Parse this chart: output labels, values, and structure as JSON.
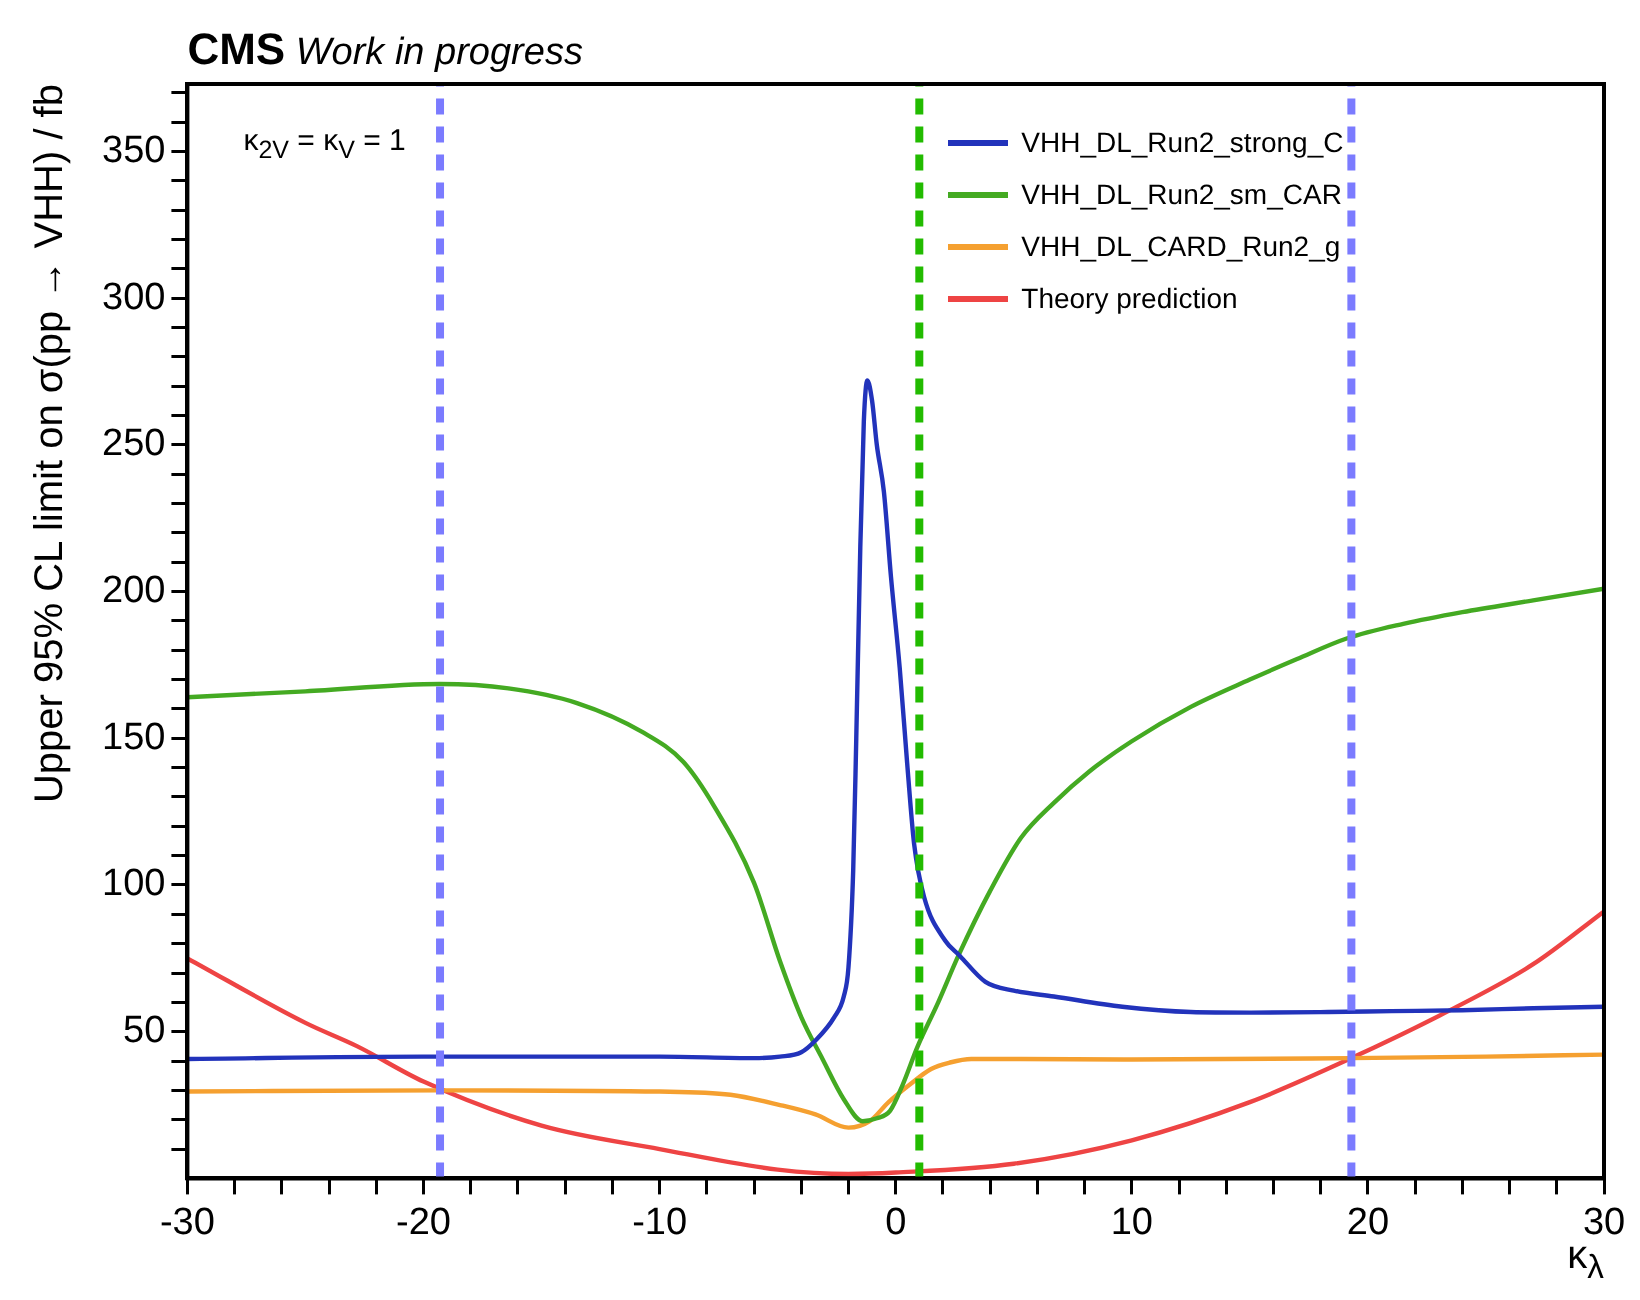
{
  "chart_data": {
    "type": "line",
    "title": "CMS",
    "subtitle": "Work in progress",
    "xlabel": "κ$_{λ}$",
    "ylabel": "Upper 95% CL limit on σ(pp → VHH) / fb",
    "annotations": [
      "κ$_{2V}$ = κ$_{V}$ = 1"
    ],
    "xlim": [
      -30,
      30
    ],
    "ylim": [
      0,
      373
    ],
    "xticks": [
      -30,
      {
        "value": -28,
        "label": null
      },
      {
        "value": -26,
        "label": null
      },
      {
        "value": -24,
        "label": null
      },
      {
        "value": -22,
        "label": null
      },
      -20,
      {
        "value": -18,
        "label": null
      },
      {
        "value": -16,
        "label": null
      },
      {
        "value": -14,
        "label": null
      },
      {
        "value": -12,
        "label": null
      },
      -10,
      {
        "value": -8,
        "label": null
      },
      {
        "value": -6,
        "label": null
      },
      {
        "value": -4,
        "label": null
      },
      {
        "value": -2,
        "label": null
      },
      0,
      {
        "value": 2,
        "label": null
      },
      {
        "value": 4,
        "label": null
      },
      {
        "value": 6,
        "label": null
      },
      {
        "value": 8,
        "label": null
      },
      10,
      {
        "value": 12,
        "label": null
      },
      {
        "value": 14,
        "label": null
      },
      {
        "value": 16,
        "label": null
      },
      {
        "value": 18,
        "label": null
      },
      20,
      {
        "value": 22,
        "label": null
      },
      {
        "value": 24,
        "label": null
      },
      {
        "value": 26,
        "label": null
      },
      {
        "value": 28,
        "label": null
      },
      30
    ],
    "yticks": [
      {
        "value": 10,
        "label": null
      },
      {
        "value": 20,
        "label": null
      },
      {
        "value": 30,
        "label": null
      },
      {
        "value": 40,
        "label": null
      },
      50,
      {
        "value": 60,
        "label": null
      },
      {
        "value": 70,
        "label": null
      },
      {
        "value": 80,
        "label": null
      },
      {
        "value": 90,
        "label": null
      },
      100,
      {
        "value": 110,
        "label": null
      },
      {
        "value": 120,
        "label": null
      },
      {
        "value": 130,
        "label": null
      },
      {
        "value": 140,
        "label": null
      },
      150,
      {
        "value": 160,
        "label": null
      },
      {
        "value": 170,
        "label": null
      },
      {
        "value": 180,
        "label": null
      },
      {
        "value": 190,
        "label": null
      },
      200,
      {
        "value": 210,
        "label": null
      },
      {
        "value": 220,
        "label": null
      },
      {
        "value": 230,
        "label": null
      },
      {
        "value": 240,
        "label": null
      },
      250,
      {
        "value": 260,
        "label": null
      },
      {
        "value": 270,
        "label": null
      },
      {
        "value": 280,
        "label": null
      },
      {
        "value": 290,
        "label": null
      },
      300,
      {
        "value": 310,
        "label": null
      },
      {
        "value": 320,
        "label": null
      },
      {
        "value": 330,
        "label": null
      },
      {
        "value": 340,
        "label": null
      },
      350,
      {
        "value": 360,
        "label": null
      },
      {
        "value": 370,
        "label": null
      }
    ],
    "grid": false,
    "legend": "top right",
    "marker": "none",
    "line_style": "solid",
    "ref_lines": [
      {
        "axis": "x",
        "value": -19.3,
        "label": null,
        "color": "#7b7bff",
        "line_style": "dashed"
      },
      {
        "axis": "x",
        "value": 1,
        "label": null,
        "color": "#22bb00",
        "line_style": "dashed"
      },
      {
        "axis": "x",
        "value": 19.3,
        "label": null,
        "color": "#7b7bff",
        "line_style": "dashed"
      }
    ],
    "series": [
      {
        "name": "VHH_DL_Run2_strong_C",
        "color": "#2233bb",
        "x": [
          -30,
          -20,
          -10,
          -6,
          -4.9,
          -4,
          -3.4,
          -2.6,
          -2.2,
          -2,
          -1.8,
          -1.67,
          -1.5,
          -1.35,
          -1.2,
          -1,
          -0.8,
          -0.5,
          -0.2,
          0.17,
          0.5,
          0.78,
          1.2,
          2.1,
          2.7,
          3.8,
          5,
          6.7,
          9.6,
          12.5,
          15,
          18.3,
          21,
          24,
          27,
          30
        ],
        "values": [
          40.7,
          41.5,
          41.5,
          41,
          41.5,
          43,
          47,
          55,
          62,
          72,
          105,
          150,
          215,
          258,
          272,
          265,
          250,
          234,
          205,
          174,
          140,
          114,
          96,
          81,
          76,
          67,
          64,
          62,
          58.5,
          56.7,
          56.5,
          56.7,
          57,
          57.3,
          58,
          58.5
        ]
      },
      {
        "name": "VHH_DL_Run2_sm_CAR",
        "color": "#44aa22",
        "x": [
          -30,
          -25,
          -19.3,
          -16.4,
          -13.5,
          -10.7,
          -9,
          -7.7,
          -6,
          -4.9,
          -4,
          -3.1,
          -2.2,
          -1.4,
          -0.8,
          -0.24,
          0.3,
          0.93,
          1.8,
          2.66,
          4,
          5.3,
          6.7,
          8.2,
          10,
          12.5,
          15,
          17,
          19.1,
          21.5,
          24,
          27,
          30
        ],
        "values": [
          164,
          166,
          168.5,
          167,
          162,
          152,
          142,
          127,
          100.7,
          74,
          55,
          40.7,
          27,
          19.5,
          20.5,
          23,
          32,
          45,
          60,
          76,
          98,
          116,
          128,
          138.7,
          149,
          160.7,
          170,
          177,
          184,
          189,
          193,
          197,
          201
        ]
      },
      {
        "name": "VHH_DL_CARD_Run2_g",
        "color": "#f5a030",
        "x": [
          -30,
          -19.3,
          -10,
          -7,
          -4.9,
          -3.4,
          -2,
          -1.1,
          -0.3,
          0.6,
          1.5,
          2.3,
          3.2,
          5,
          10,
          19.3,
          25,
          30
        ],
        "values": [
          29.6,
          30,
          29.6,
          28.5,
          25,
          21.8,
          17.3,
          19.5,
          26,
          32,
          37.3,
          39.5,
          40.7,
          40.7,
          40.5,
          41,
          41.5,
          42.2
        ]
      },
      {
        "name": "Theory prediction",
        "color": "#ee4444",
        "x": [
          -30,
          -25,
          -22.8,
          -20,
          -15,
          -10,
          -5,
          -2,
          0,
          5,
          10,
          15,
          19.3,
          23.4,
          27,
          30
        ],
        "values": [
          75,
          53,
          45,
          33,
          18,
          10,
          3,
          1.5,
          2,
          5,
          13,
          26,
          41,
          57,
          73,
          91
        ]
      }
    ]
  }
}
